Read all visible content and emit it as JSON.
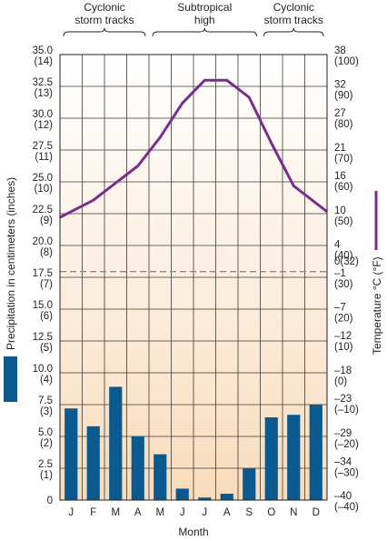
{
  "chart_data": {
    "type": "bar",
    "title": "",
    "xlabel": "Month",
    "ylabel": "Precipitation in centimeters (inches)",
    "y2label": "Temperature °C (°F)",
    "categories": [
      "J",
      "F",
      "M",
      "A",
      "M",
      "J",
      "J",
      "A",
      "S",
      "O",
      "N",
      "D"
    ],
    "ylim": [
      0,
      35
    ],
    "y2lim": [
      -40,
      38
    ],
    "grid": true,
    "dashed_line_label_value": 0,
    "series": [
      {
        "kind": "bar",
        "axis": "left",
        "color": "#0b5a8f",
        "values": [
          7.2,
          5.8,
          8.9,
          5.0,
          3.6,
          0.9,
          0.2,
          0.5,
          2.5,
          6.5,
          6.7,
          7.5
        ]
      },
      {
        "kind": "line",
        "axis": "right",
        "color": "#7b2d8e",
        "values": [
          9.5,
          12.5,
          15.5,
          18.5,
          23.5,
          29.5,
          33.5,
          33.5,
          30.5,
          22.5,
          15.0,
          10.5
        ]
      }
    ],
    "left_ticks": [
      {
        "v": 35.0,
        "a": "35.0",
        "b": "(14)"
      },
      {
        "v": 32.5,
        "a": "32.5",
        "b": "(13)"
      },
      {
        "v": 30.0,
        "a": "30.0",
        "b": "(12)"
      },
      {
        "v": 27.5,
        "a": "27.5",
        "b": "(11)"
      },
      {
        "v": 25.0,
        "a": "25.0",
        "b": "(10)"
      },
      {
        "v": 22.5,
        "a": "22.5",
        "b": "(9)"
      },
      {
        "v": 20.0,
        "a": "20.0",
        "b": "(8)"
      },
      {
        "v": 17.5,
        "a": "17.5",
        "b": "(7)"
      },
      {
        "v": 15.0,
        "a": "15.0",
        "b": "(6)"
      },
      {
        "v": 12.5,
        "a": "12.5",
        "b": "(5)"
      },
      {
        "v": 10.0,
        "a": "10.0",
        "b": "(4)"
      },
      {
        "v": 7.5,
        "a": "7.5",
        "b": "(3)"
      },
      {
        "v": 5.0,
        "a": "5.0",
        "b": "(2)"
      },
      {
        "v": 2.5,
        "a": "2.5",
        "b": "(1)"
      },
      {
        "v": 0,
        "a": "0",
        "b": ""
      }
    ],
    "right_ticks": [
      {
        "v": 38,
        "a": "38",
        "b": "(100)"
      },
      {
        "v": 32,
        "a": "32",
        "b": "(90)"
      },
      {
        "v": 27,
        "a": "27",
        "b": "(80)"
      },
      {
        "v": 21,
        "a": "21",
        "b": "(70)"
      },
      {
        "v": 16,
        "a": "16",
        "b": "(60)"
      },
      {
        "v": 10,
        "a": "10",
        "b": "(50)"
      },
      {
        "v": 4,
        "a": "4",
        "b": "(40)"
      },
      {
        "v": -1,
        "a": "–1",
        "b": "(30)",
        "pre": "0(32)"
      },
      {
        "v": -7,
        "a": "–7",
        "b": "(20)"
      },
      {
        "v": -12,
        "a": "–12",
        "b": "(10)"
      },
      {
        "v": -18,
        "a": "–18",
        "b": "(0)"
      },
      {
        "v": -23,
        "a": "–23",
        "b": "(–10)"
      },
      {
        "v": -29,
        "a": "–29",
        "b": "(–20)"
      },
      {
        "v": -34,
        "a": "–34",
        "b": "(–30)"
      },
      {
        "v": -40,
        "a": "–40",
        "b": "(–40)"
      }
    ],
    "annotations": [
      {
        "text1": "Cyclonic",
        "text2": "storm tracks",
        "from": 0,
        "to": 4
      },
      {
        "text1": "Subtropical",
        "text2": "high",
        "from": 4,
        "to": 9
      },
      {
        "text1": "Cyclonic",
        "text2": "storm tracks",
        "from": 9,
        "to": 12
      }
    ]
  }
}
